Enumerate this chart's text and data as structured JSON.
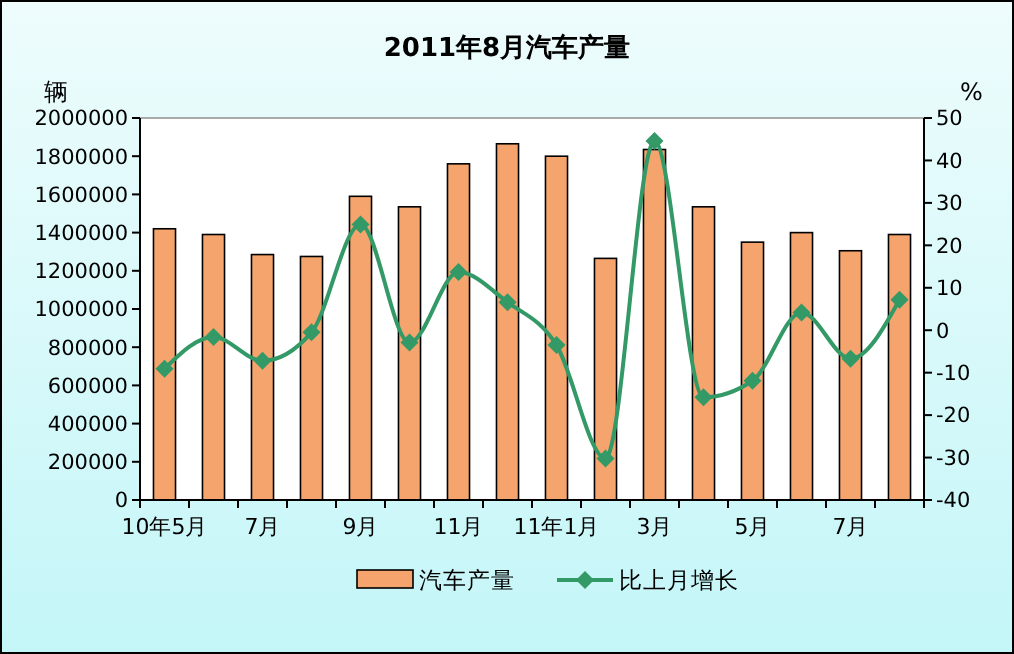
{
  "chart_data": {
    "type": "bar",
    "title": "2011年8月汽车产量",
    "ylabel": "辆",
    "y2label": "%",
    "categories": [
      "10年5月",
      null,
      "7月",
      null,
      "9月",
      null,
      "11月",
      null,
      "11年1月",
      null,
      "3月",
      null,
      "5月",
      null,
      "7月",
      null
    ],
    "series": [
      {
        "name": "汽车产量",
        "color": "#f4a46c",
        "values": [
          1420000,
          1390000,
          1285000,
          1275000,
          1590000,
          1535000,
          1760000,
          1865000,
          1800000,
          1265000,
          1835000,
          1535000,
          1350000,
          1400000,
          1305000,
          1390000
        ]
      },
      {
        "name": "比上月增长",
        "type": "line",
        "axis": "y2",
        "color": "#339966",
        "marker": "diamond",
        "values": [
          -9.1,
          -1.6,
          -7.2,
          -0.5,
          24.9,
          -2.9,
          13.7,
          6.6,
          -3.5,
          -30.2,
          44.6,
          -15.8,
          -11.9,
          4.2,
          -6.7,
          7.2
        ]
      }
    ],
    "ylim": [
      0,
      2000000
    ],
    "yticks": [
      0,
      200000,
      400000,
      600000,
      800000,
      1000000,
      1200000,
      1400000,
      1600000,
      1800000,
      2000000
    ],
    "y2lim": [
      -40,
      50
    ],
    "y2ticks": [
      -40,
      -30,
      -20,
      -10,
      0,
      10,
      20,
      30,
      40,
      50
    ],
    "grid": false,
    "legend": "bottom"
  }
}
